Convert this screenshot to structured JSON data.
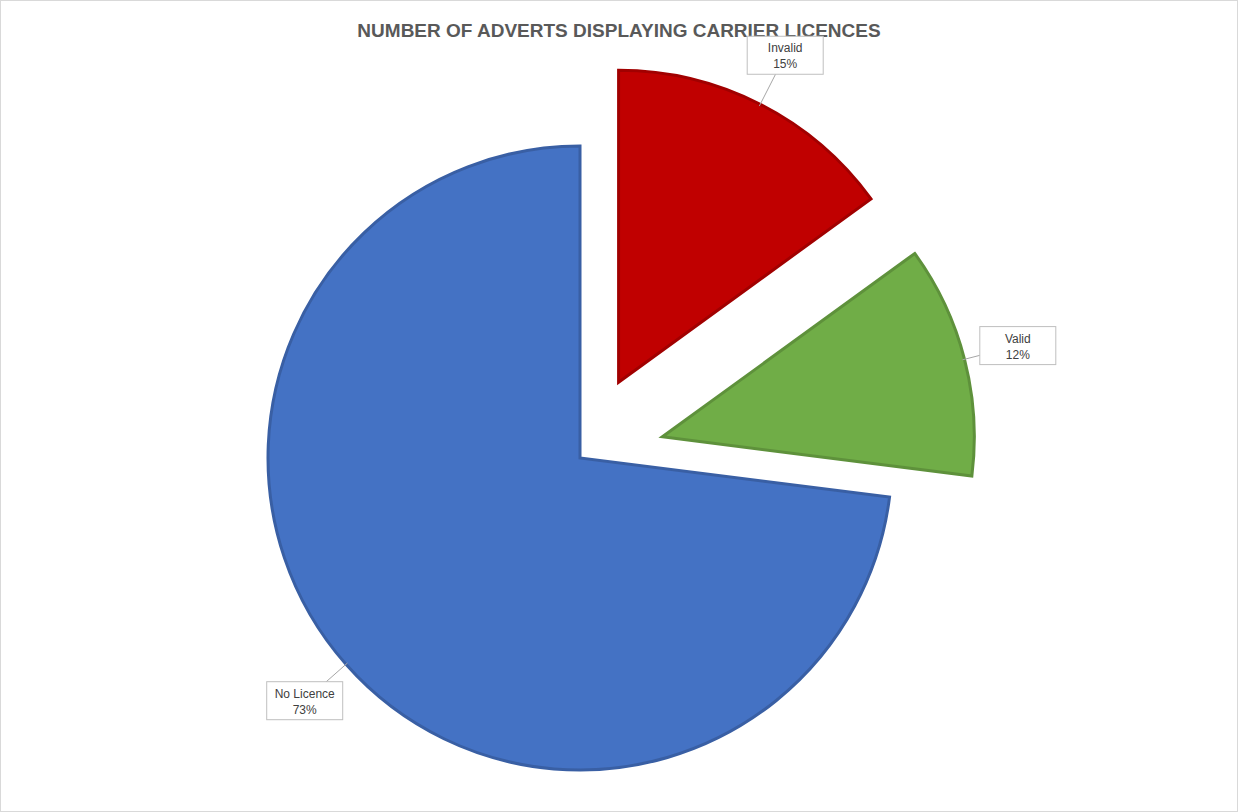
{
  "chart_data": {
    "type": "pie",
    "title": "NUMBER OF ADVERTS DISPLAYING CARRIER LICENCES",
    "categories": [
      "Invalid",
      "Valid",
      "No Licence"
    ],
    "values": [
      15,
      12,
      73
    ],
    "value_labels": [
      "15%",
      "12%",
      "73%"
    ],
    "colors": [
      "#c00000",
      "#70ad47",
      "#4472c4"
    ],
    "data_labels": true
  }
}
